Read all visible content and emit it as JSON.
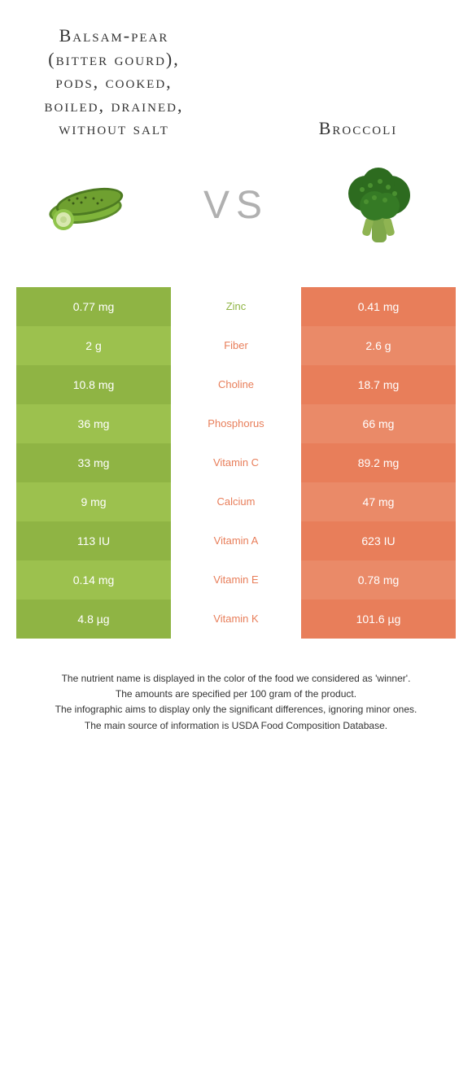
{
  "titles": {
    "left": "Balsam-pear (bitter gourd), pods, cooked, boiled, drained, without salt",
    "right": "Broccoli"
  },
  "vs": "VS",
  "colors": {
    "left_primary": "#8fb444",
    "left_alt": "#9cc14e",
    "right_primary": "#e87e5a",
    "right_alt": "#ea8a68",
    "vs_text": "#b0b0b0"
  },
  "rows": [
    {
      "left": "0.77 mg",
      "nutrient": "Zinc",
      "right": "0.41 mg",
      "winner": "left"
    },
    {
      "left": "2 g",
      "nutrient": "Fiber",
      "right": "2.6 g",
      "winner": "right"
    },
    {
      "left": "10.8 mg",
      "nutrient": "Choline",
      "right": "18.7 mg",
      "winner": "right"
    },
    {
      "left": "36 mg",
      "nutrient": "Phosphorus",
      "right": "66 mg",
      "winner": "right"
    },
    {
      "left": "33 mg",
      "nutrient": "Vitamin C",
      "right": "89.2 mg",
      "winner": "right"
    },
    {
      "left": "9 mg",
      "nutrient": "Calcium",
      "right": "47 mg",
      "winner": "right"
    },
    {
      "left": "113 IU",
      "nutrient": "Vitamin A",
      "right": "623 IU",
      "winner": "right"
    },
    {
      "left": "0.14 mg",
      "nutrient": "Vitamin E",
      "right": "0.78 mg",
      "winner": "right"
    },
    {
      "left": "4.8 µg",
      "nutrient": "Vitamin K",
      "right": "101.6 µg",
      "winner": "right"
    }
  ],
  "footer": {
    "line1": "The nutrient name is displayed in the color of the food we considered as 'winner'.",
    "line2": "The amounts are specified per 100 gram of the product.",
    "line3": "The infographic aims to display only the significant differences, ignoring minor ones.",
    "line4": "The main source of information is USDA Food Composition Database."
  }
}
